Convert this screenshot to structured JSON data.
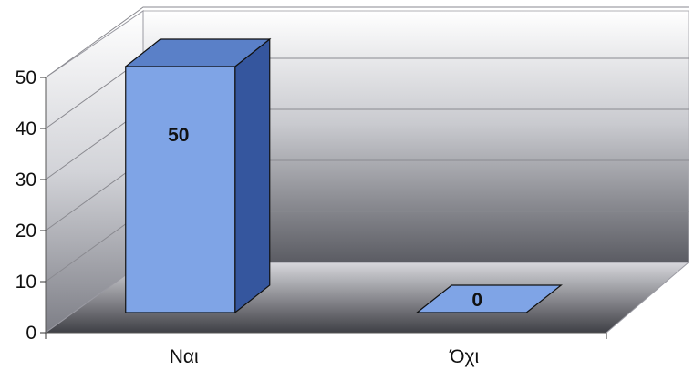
{
  "chart_data": {
    "type": "bar",
    "categories": [
      "Ναι",
      "Όχι"
    ],
    "values": [
      50,
      0
    ],
    "data_labels": [
      "50",
      "0"
    ],
    "ylim": [
      0,
      50
    ],
    "yticks": [
      0,
      10,
      20,
      30,
      40,
      50
    ],
    "ytick_labels": [
      "0",
      "10",
      "20",
      "30",
      "40",
      "50"
    ],
    "title": "",
    "xlabel": "",
    "ylabel": "",
    "grid": true,
    "legend": "none",
    "three_d": true,
    "colors": {
      "bar_front": "#7fa4e6",
      "bar_top": "#5a80c8",
      "bar_side": "#35569e",
      "outline": "#111111"
    }
  }
}
